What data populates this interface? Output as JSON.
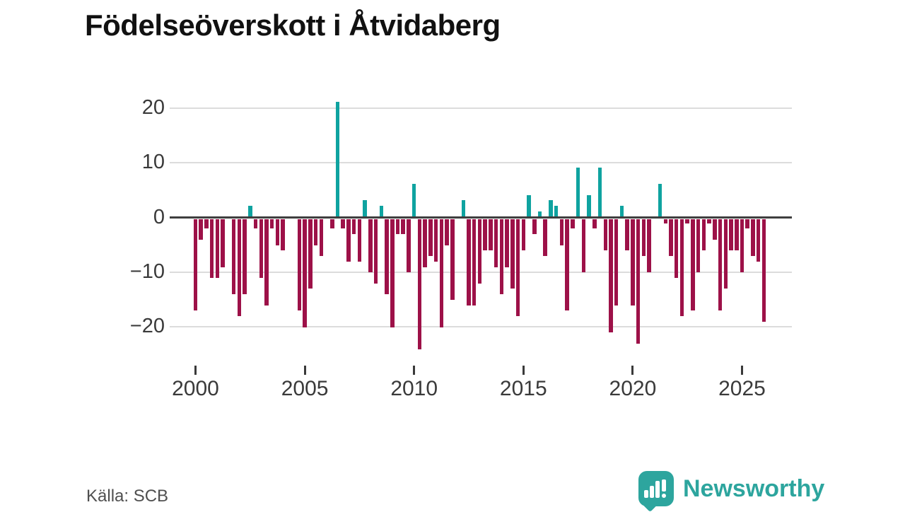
{
  "title": "Födelseöverskott i Åtvidaberg",
  "source": "Källa: SCB",
  "branding": {
    "name": "Newsworthy",
    "logo_icon": "bar-chart-speech-bubble-icon"
  },
  "colors": {
    "positive": "#0fa3a0",
    "negative": "#9d1148",
    "axis": "#3f3f3f",
    "grid": "#dcdcdc",
    "brand": "#2da59e",
    "title_text": "#111111",
    "tick_text": "#3a3a3a",
    "source_text": "#4f4f4f"
  },
  "chart_data": {
    "type": "bar",
    "title": "Födelseöverskott i Åtvidaberg",
    "frequency": "quarterly",
    "start": {
      "year": 2000,
      "quarter": 1
    },
    "end": {
      "year": 2026,
      "quarter": 1
    },
    "xlabel": "",
    "ylabel": "",
    "grid": true,
    "legend": false,
    "ylim": [
      -26,
      23
    ],
    "y_ticks": [
      20,
      10,
      0,
      -10,
      -20
    ],
    "y_tick_labels": [
      "20",
      "10",
      "0",
      "−10",
      "−20"
    ],
    "x_tick_years": [
      2000,
      2005,
      2010,
      2015,
      2020,
      2025
    ],
    "x_tick_labels": [
      "2000",
      "2005",
      "2010",
      "2015",
      "2020",
      "2025"
    ],
    "positive_color": "#0fa3a0",
    "negative_color": "#9d1148",
    "values": [
      -17,
      -4,
      -2,
      -11,
      -11,
      -9,
      0,
      -14,
      -18,
      -14,
      2,
      -2,
      -11,
      -16,
      -2,
      -5,
      -6,
      0,
      0,
      -17,
      -20,
      -13,
      -5,
      -7,
      0,
      -2,
      21,
      -2,
      -8,
      -3,
      -8,
      3,
      -10,
      -12,
      2,
      -14,
      -20,
      -3,
      -3,
      -10,
      6,
      -24,
      -9,
      -7,
      -8,
      -20,
      -5,
      -15,
      0,
      3,
      -16,
      -16,
      -12,
      -6,
      -6,
      -9,
      -14,
      -9,
      -13,
      -18,
      -6,
      4,
      -3,
      1,
      -7,
      3,
      2,
      -5,
      -17,
      -2,
      9,
      -10,
      4,
      -2,
      9,
      -6,
      -21,
      -16,
      2,
      -6,
      -16,
      -23,
      -7,
      -10,
      0,
      6,
      -1,
      -7,
      -11,
      -18,
      -1,
      -17,
      -10,
      -6,
      -1,
      -4,
      -17,
      -13,
      -6,
      -6,
      -10,
      -2,
      -7,
      -8,
      -19
    ]
  }
}
